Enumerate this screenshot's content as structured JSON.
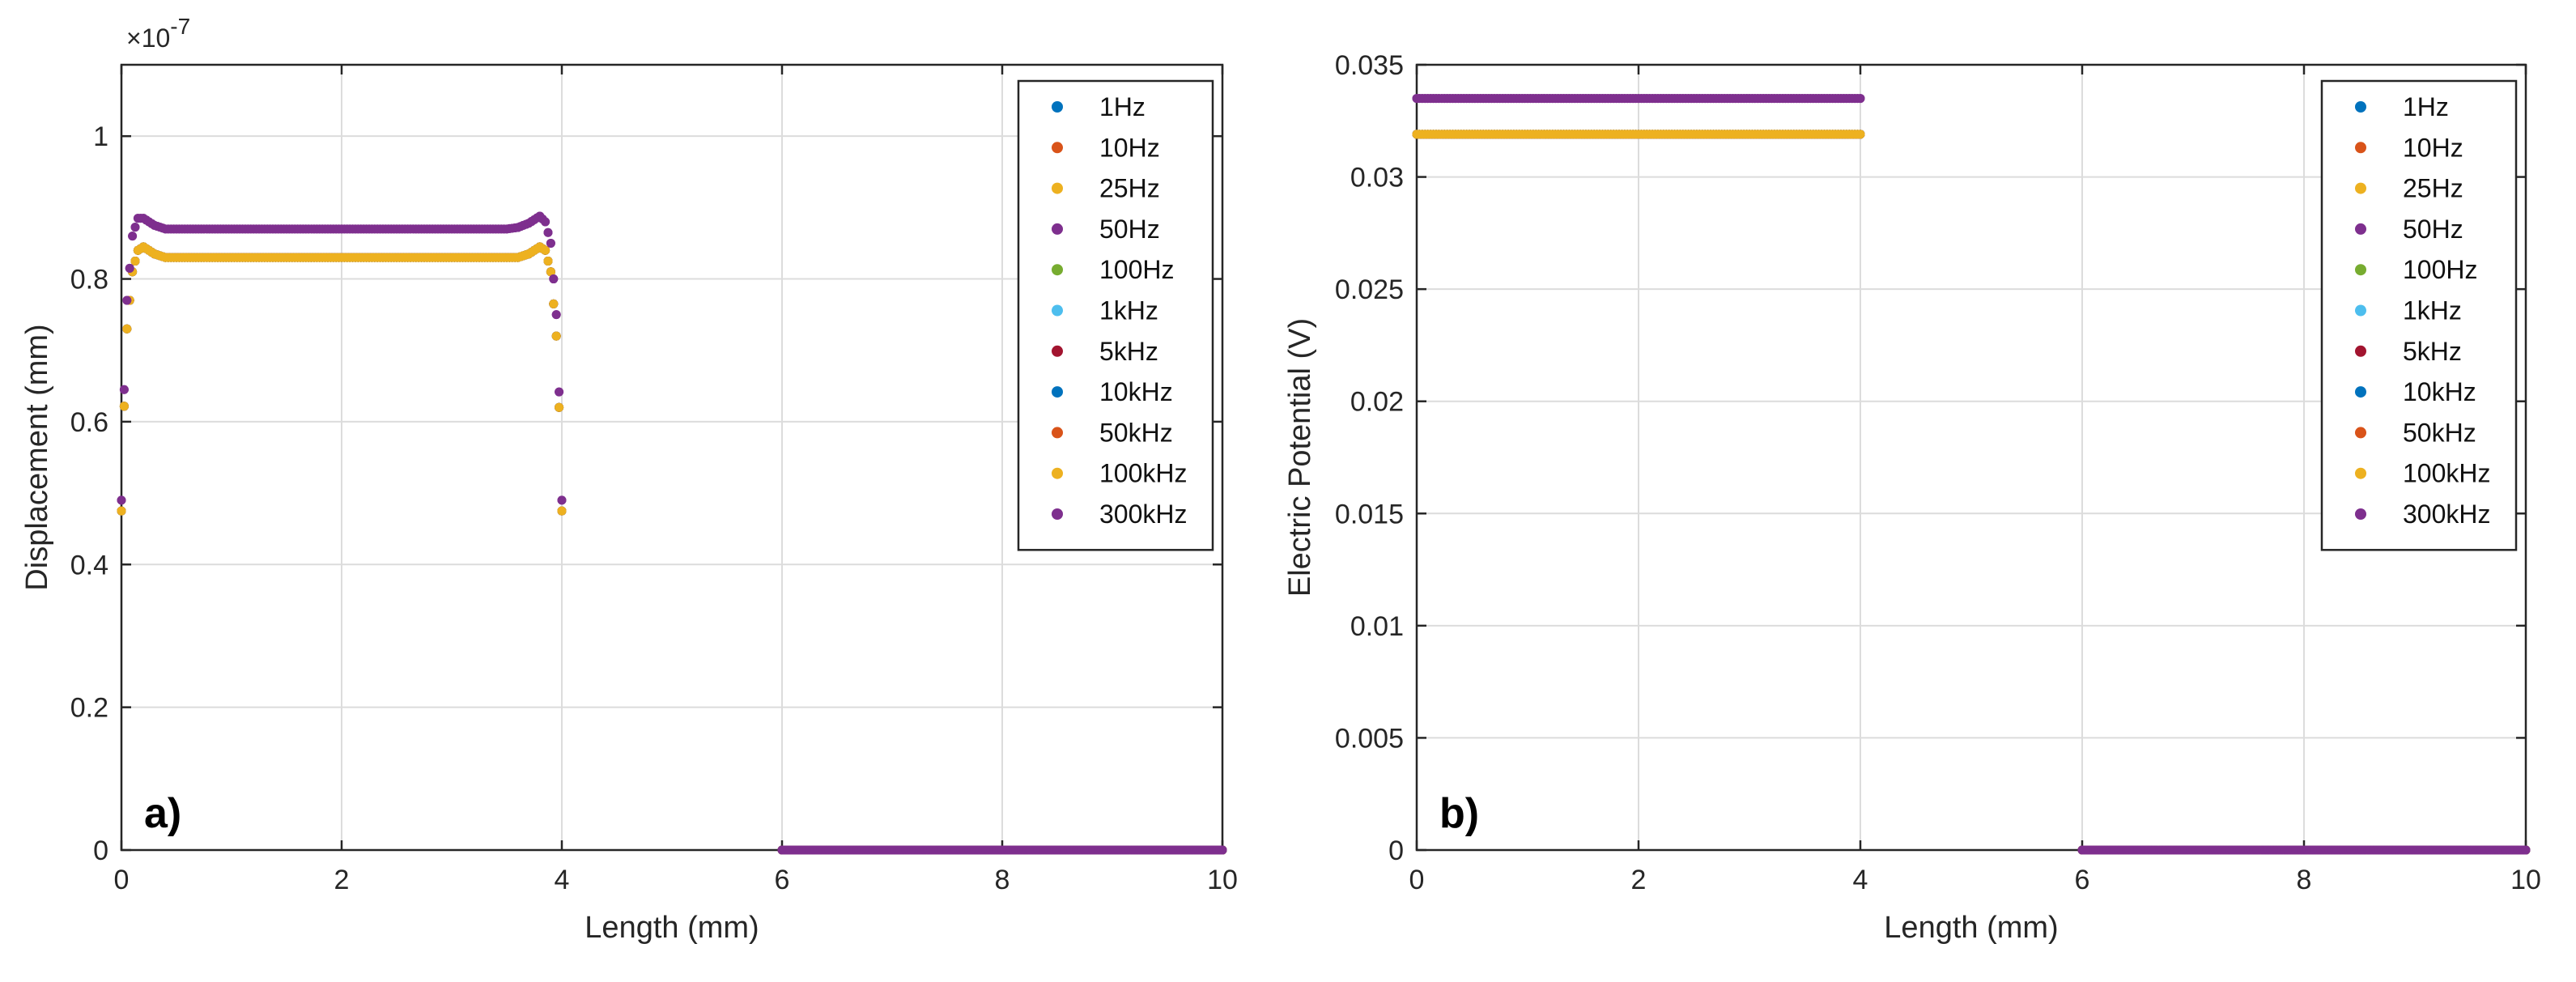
{
  "palette": {
    "1Hz": "#0072BD",
    "10Hz": "#D95319",
    "25Hz": "#EDB120",
    "50Hz": "#7E2F8E",
    "100Hz": "#77AC30",
    "1kHz": "#4DBEEE",
    "5kHz": "#A2142F",
    "10kHz": "#0072BD",
    "50kHz": "#D95319",
    "100kHz": "#EDB120",
    "300kHz": "#7E2F8E"
  },
  "chart_data": [
    {
      "type": "scatter",
      "panel_label": "a)",
      "xlabel": "Length (mm)",
      "ylabel": "Displacement (mm)",
      "y_exponent_label": "×10",
      "y_exponent_power": "-7",
      "xlim": [
        0,
        10
      ],
      "ylim": [
        0,
        1.1
      ],
      "xticks": [
        0,
        2,
        4,
        6,
        8,
        10
      ],
      "xtick_labels": [
        "0",
        "2",
        "4",
        "6",
        "8",
        "10"
      ],
      "yticks": [
        0,
        0.2,
        0.4,
        0.6,
        0.8,
        1
      ],
      "ytick_labels": [
        "0",
        "0.2",
        "0.4",
        "0.6",
        "0.8",
        "1"
      ],
      "grid": true,
      "legend_position": "top-right",
      "legend": [
        "1Hz",
        "10Hz",
        "25Hz",
        "50Hz",
        "100Hz",
        "1kHz",
        "5kHz",
        "10kHz",
        "50kHz",
        "100kHz",
        "300kHz"
      ],
      "series_groups": [
        {
          "series": [
            "1Hz",
            "10Hz",
            "25Hz",
            "100Hz",
            "1kHz",
            "5kHz",
            "10kHz",
            "50kHz",
            "100kHz"
          ],
          "segments": [
            {
              "x": [
                0,
                0.02,
                0.05,
                0.1,
                0.15,
                0.2,
                0.3,
                0.4,
                0.5,
                1,
                2,
                3,
                3.5,
                3.6,
                3.7,
                3.8,
                3.85,
                3.9,
                3.95,
                3.98,
                4
              ],
              "y": [
                0.475,
                0.6,
                0.73,
                0.81,
                0.84,
                0.845,
                0.835,
                0.83,
                0.83,
                0.83,
                0.83,
                0.83,
                0.83,
                0.83,
                0.835,
                0.845,
                0.84,
                0.81,
                0.72,
                0.6,
                0.475
              ]
            },
            {
              "x": [
                6,
                7,
                8,
                9,
                10
              ],
              "y": [
                0,
                0,
                0,
                0,
                0
              ]
            }
          ]
        },
        {
          "series": [
            "50Hz",
            "300kHz"
          ],
          "segments": [
            {
              "x": [
                0,
                0.02,
                0.05,
                0.1,
                0.15,
                0.2,
                0.3,
                0.4,
                0.5,
                1,
                2,
                3,
                3.5,
                3.6,
                3.7,
                3.8,
                3.85,
                3.9,
                3.95,
                3.98,
                4
              ],
              "y": [
                0.49,
                0.62,
                0.77,
                0.86,
                0.885,
                0.885,
                0.875,
                0.87,
                0.87,
                0.87,
                0.87,
                0.87,
                0.87,
                0.872,
                0.878,
                0.888,
                0.88,
                0.85,
                0.75,
                0.62,
                0.49
              ]
            },
            {
              "x": [
                6,
                7,
                8,
                9,
                10
              ],
              "y": [
                0,
                0,
                0,
                0,
                0
              ]
            }
          ]
        }
      ]
    },
    {
      "type": "scatter",
      "panel_label": "b)",
      "xlabel": "Length (mm)",
      "ylabel": "Electric Potential (V)",
      "xlim": [
        0,
        10
      ],
      "ylim": [
        0,
        0.035
      ],
      "xticks": [
        0,
        2,
        4,
        6,
        8,
        10
      ],
      "xtick_labels": [
        "0",
        "2",
        "4",
        "6",
        "8",
        "10"
      ],
      "yticks": [
        0,
        0.005,
        0.01,
        0.015,
        0.02,
        0.025,
        0.03,
        0.035
      ],
      "ytick_labels": [
        "0",
        "0.005",
        "0.01",
        "0.015",
        "0.02",
        "0.025",
        "0.03",
        "0.035"
      ],
      "grid": true,
      "legend_position": "top-right",
      "legend": [
        "1Hz",
        "10Hz",
        "25Hz",
        "50Hz",
        "100Hz",
        "1kHz",
        "5kHz",
        "10kHz",
        "50kHz",
        "100kHz",
        "300kHz"
      ],
      "series_groups": [
        {
          "series": [
            "1Hz",
            "10Hz",
            "25Hz",
            "100Hz",
            "1kHz",
            "5kHz",
            "10kHz",
            "50kHz",
            "100kHz"
          ],
          "segments": [
            {
              "x": [
                0,
                4
              ],
              "y": [
                0.0319,
                0.0319
              ]
            },
            {
              "x": [
                6,
                10
              ],
              "y": [
                0,
                0
              ]
            }
          ]
        },
        {
          "series": [
            "50Hz",
            "300kHz"
          ],
          "segments": [
            {
              "x": [
                0,
                4
              ],
              "y": [
                0.0335,
                0.0335
              ]
            },
            {
              "x": [
                6,
                10
              ],
              "y": [
                0,
                0
              ]
            }
          ]
        }
      ]
    }
  ]
}
